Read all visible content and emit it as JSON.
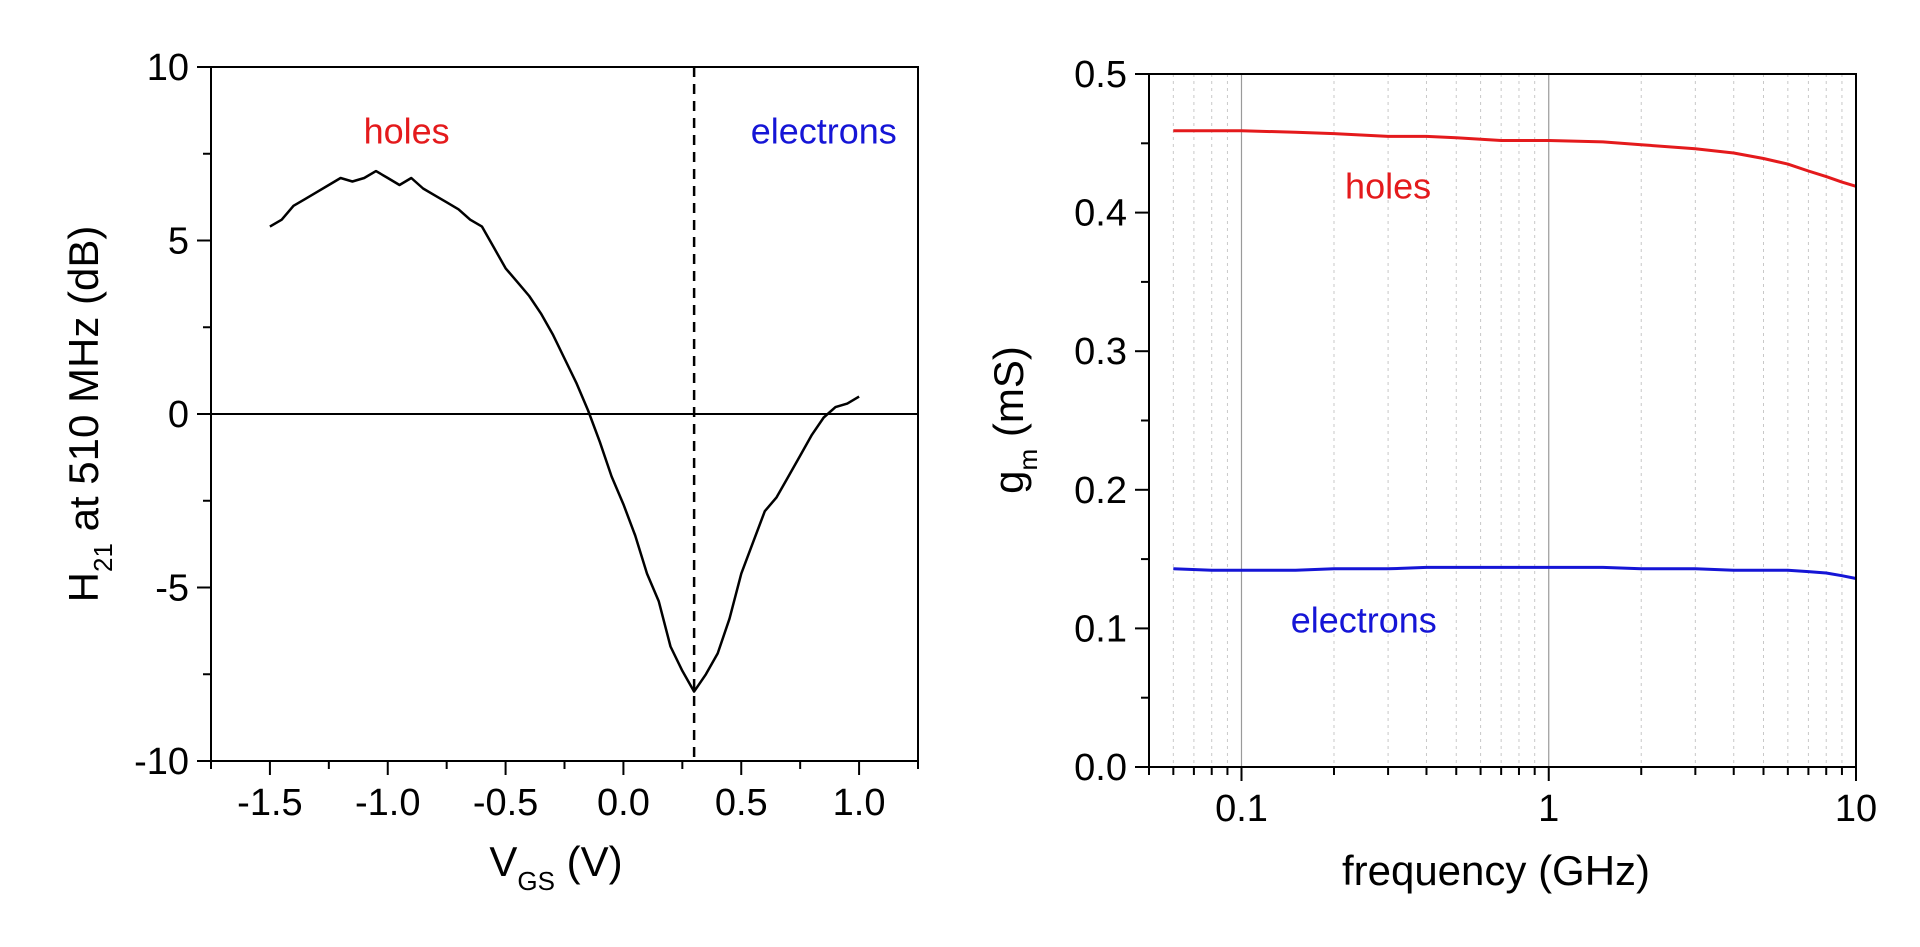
{
  "chart_data": [
    {
      "type": "line",
      "title": "",
      "xlabel_main": "V",
      "xlabel_sub": "GS",
      "xlabel_unit": " (V)",
      "ylabel_main": "H",
      "ylabel_sub": "21",
      "ylabel_rest": " at 510 MHz (dB)",
      "xlim": [
        -1.75,
        1.25
      ],
      "ylim": [
        -10,
        10
      ],
      "xticks": [
        {
          "value": -1.5,
          "label": "-1.5"
        },
        {
          "value": -1.0,
          "label": "-1.0"
        },
        {
          "value": -0.5,
          "label": "-0.5"
        },
        {
          "value": 0.0,
          "label": "0.0"
        },
        {
          "value": 0.5,
          "label": "0.5"
        },
        {
          "value": 1.0,
          "label": "1.0"
        }
      ],
      "yticks": [
        {
          "value": -10,
          "label": "-10"
        },
        {
          "value": -5,
          "label": "-5"
        },
        {
          "value": 0,
          "label": "0"
        },
        {
          "value": 5,
          "label": "5"
        },
        {
          "value": 10,
          "label": "10"
        }
      ],
      "reference_lines": {
        "horizontal_y": 0,
        "vertical_dashed_x": 0.3
      },
      "annotations": [
        {
          "text": "holes",
          "color": "#e41a1c",
          "x": -0.92,
          "y": 7.8
        },
        {
          "text": "electrons",
          "color": "#1515d6",
          "x": 0.85,
          "y": 7.8
        }
      ],
      "series": [
        {
          "name": "H21",
          "color": "#000000",
          "x": [
            -1.5,
            -1.45,
            -1.4,
            -1.35,
            -1.3,
            -1.25,
            -1.2,
            -1.15,
            -1.1,
            -1.05,
            -1.0,
            -0.95,
            -0.9,
            -0.85,
            -0.8,
            -0.75,
            -0.7,
            -0.65,
            -0.6,
            -0.55,
            -0.5,
            -0.45,
            -0.4,
            -0.35,
            -0.3,
            -0.25,
            -0.2,
            -0.15,
            -0.1,
            -0.05,
            0.0,
            0.05,
            0.1,
            0.15,
            0.2,
            0.25,
            0.3,
            0.35,
            0.4,
            0.45,
            0.5,
            0.55,
            0.6,
            0.65,
            0.7,
            0.75,
            0.8,
            0.85,
            0.9,
            0.95,
            1.0
          ],
          "y": [
            5.4,
            5.6,
            6.0,
            6.2,
            6.4,
            6.6,
            6.8,
            6.7,
            6.8,
            7.0,
            6.8,
            6.6,
            6.8,
            6.5,
            6.3,
            6.1,
            5.9,
            5.6,
            5.4,
            4.8,
            4.2,
            3.8,
            3.4,
            2.9,
            2.3,
            1.6,
            0.9,
            0.1,
            -0.8,
            -1.8,
            -2.6,
            -3.5,
            -4.6,
            -5.4,
            -6.7,
            -7.4,
            -8.0,
            -7.5,
            -6.9,
            -5.9,
            -4.6,
            -3.7,
            -2.8,
            -2.4,
            -1.8,
            -1.2,
            -0.6,
            -0.1,
            0.2,
            0.3,
            0.5
          ]
        }
      ]
    },
    {
      "type": "line",
      "title": "",
      "xlabel": "frequency (GHz)",
      "xscale": "log",
      "ylabel_main": "g",
      "ylabel_sub": "m",
      "ylabel_unit": " (mS)",
      "xlim": [
        0.05,
        10
      ],
      "ylim": [
        0.0,
        0.5
      ],
      "xticks": [
        {
          "value": 0.1,
          "label": "0.1"
        },
        {
          "value": 1,
          "label": "1"
        },
        {
          "value": 10,
          "label": "10"
        }
      ],
      "yticks": [
        {
          "value": 0.0,
          "label": "0.0"
        },
        {
          "value": 0.1,
          "label": "0.1"
        },
        {
          "value": 0.2,
          "label": "0.2"
        },
        {
          "value": 0.3,
          "label": "0.3"
        },
        {
          "value": 0.4,
          "label": "0.4"
        },
        {
          "value": 0.5,
          "label": "0.5"
        }
      ],
      "grid": "vertical",
      "annotations": [
        {
          "text": "holes",
          "color": "#e41a1c",
          "x": 0.3,
          "y": 0.41
        },
        {
          "text": "electrons",
          "color": "#1515d6",
          "x": 0.25,
          "y": 0.097
        }
      ],
      "series": [
        {
          "name": "holes",
          "color": "#e41a1c",
          "x": [
            0.06,
            0.08,
            0.1,
            0.15,
            0.2,
            0.3,
            0.4,
            0.5,
            0.7,
            1.0,
            1.5,
            2.0,
            3.0,
            4.0,
            5.0,
            6.0,
            7.0,
            8.0,
            9.0,
            10.0
          ],
          "y": [
            0.459,
            0.459,
            0.459,
            0.458,
            0.457,
            0.455,
            0.455,
            0.454,
            0.452,
            0.452,
            0.451,
            0.449,
            0.446,
            0.443,
            0.439,
            0.435,
            0.43,
            0.426,
            0.422,
            0.419
          ]
        },
        {
          "name": "electrons",
          "color": "#1515d6",
          "x": [
            0.06,
            0.08,
            0.1,
            0.15,
            0.2,
            0.3,
            0.4,
            0.5,
            0.7,
            1.0,
            1.5,
            2.0,
            3.0,
            4.0,
            5.0,
            6.0,
            7.0,
            8.0,
            9.0,
            10.0
          ],
          "y": [
            0.143,
            0.142,
            0.142,
            0.142,
            0.143,
            0.143,
            0.144,
            0.144,
            0.144,
            0.144,
            0.144,
            0.143,
            0.143,
            0.142,
            0.142,
            0.142,
            0.141,
            0.14,
            0.138,
            0.136
          ]
        }
      ]
    }
  ]
}
